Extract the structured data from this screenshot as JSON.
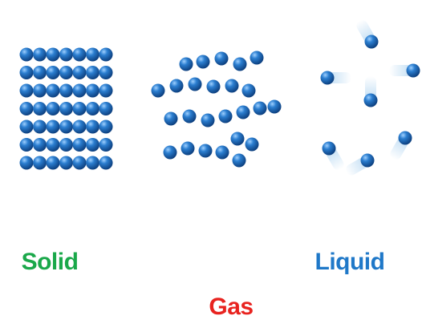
{
  "labels": [
    "Solid",
    "Gas",
    "Liquid"
  ]
}
